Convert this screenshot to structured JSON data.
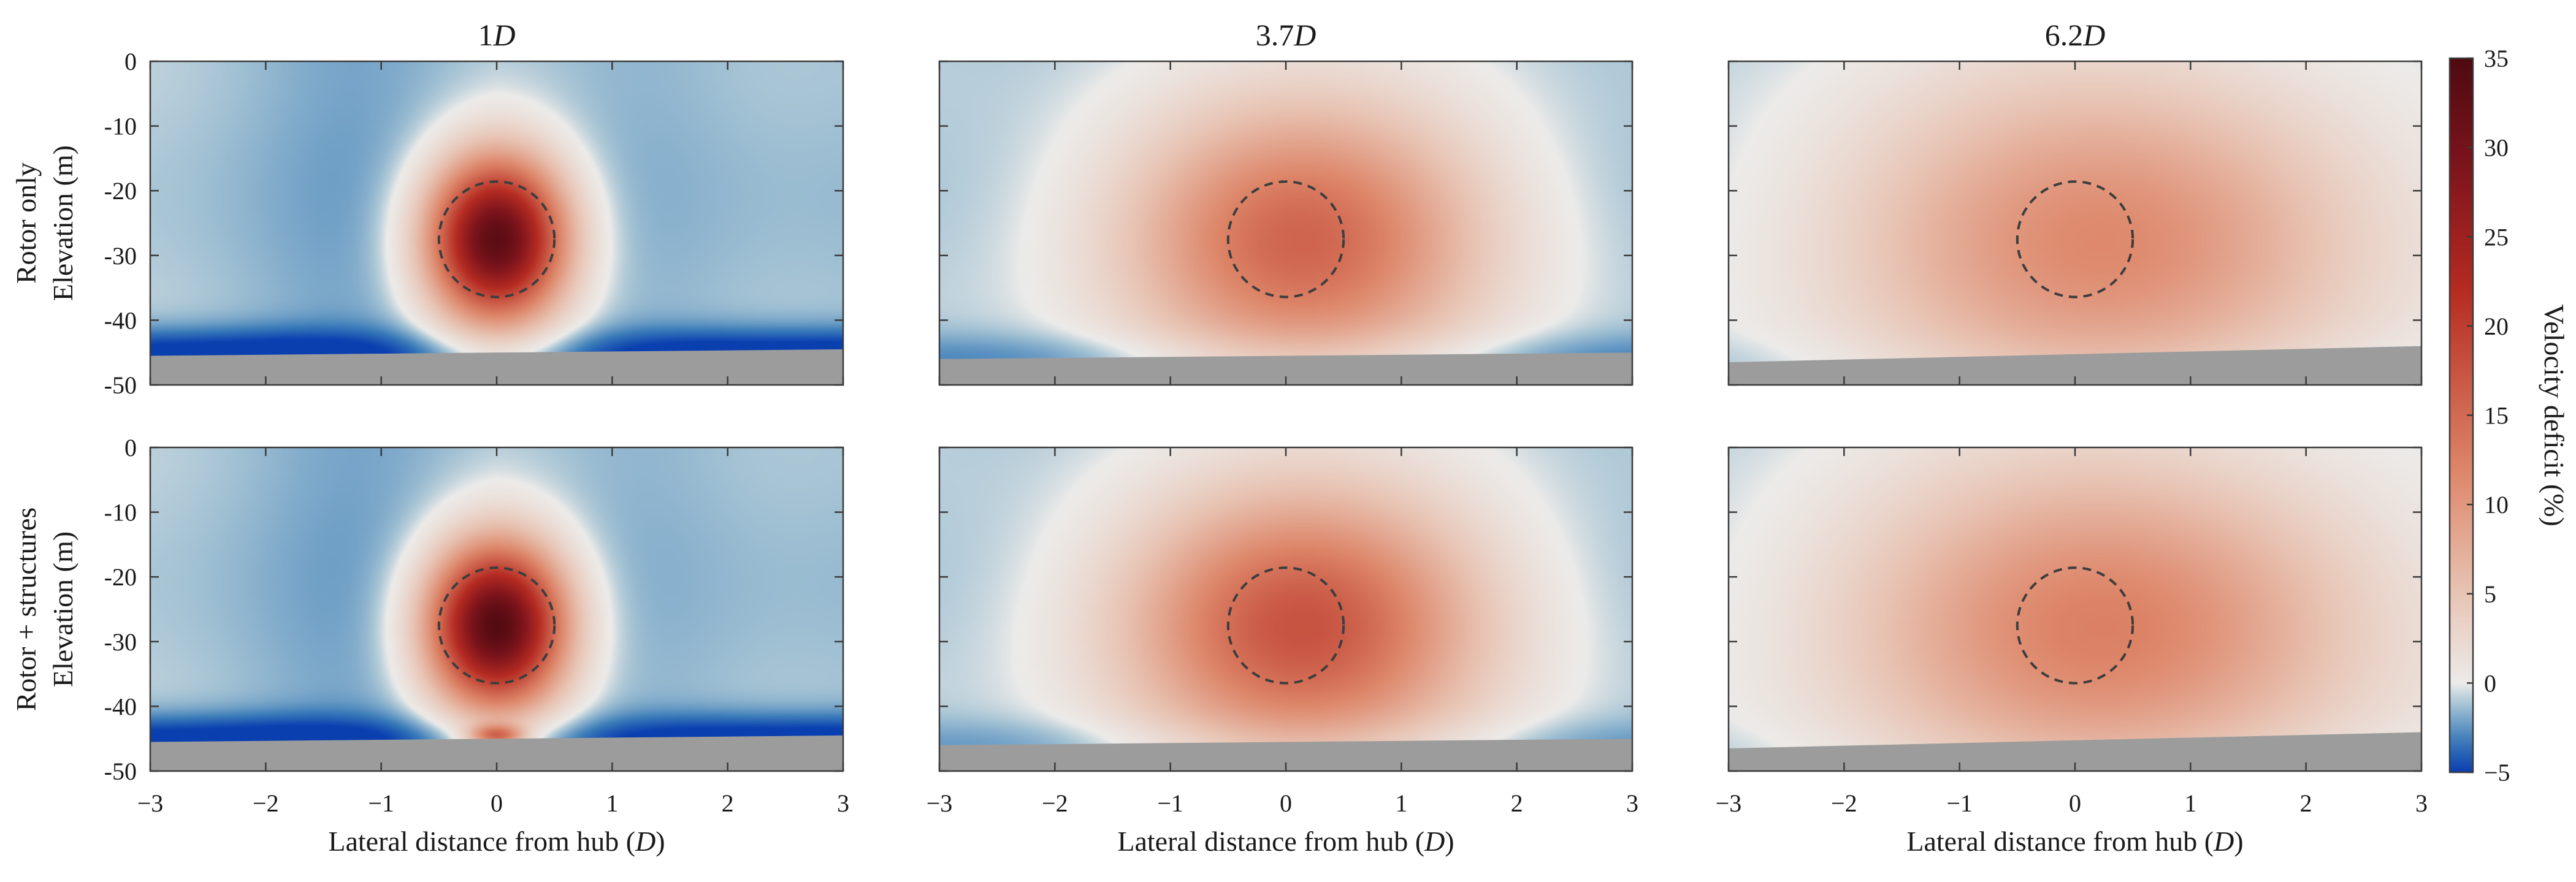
{
  "chart_data": {
    "type": "heatmap",
    "columns": [
      {
        "title_num": "1",
        "title_var": "D",
        "x_distance_D": 1
      },
      {
        "title_num": "3.7",
        "title_var": "D",
        "x_distance_D": 3.7
      },
      {
        "title_num": "6.2",
        "title_var": "D",
        "x_distance_D": 6.2
      }
    ],
    "rows": [
      {
        "label_line1": "Rotor only",
        "label_line2": "Elevation (m)"
      },
      {
        "label_line1": "Rotor + structures",
        "label_line2": "Elevation (m)"
      }
    ],
    "xlabel_text": "Lateral distance from hub (",
    "xlabel_var": "D",
    "xlabel_close": ")",
    "xlim": [
      -3,
      3
    ],
    "ylim": [
      -50,
      0
    ],
    "xticks": [
      -3,
      -2,
      -1,
      0,
      1,
      2,
      3
    ],
    "xtick_labels": [
      "−3",
      "−2",
      "−1",
      "0",
      "1",
      "2",
      "3"
    ],
    "yticks": [
      0,
      -10,
      -20,
      -30,
      -40,
      -50
    ],
    "ytick_labels": [
      "0",
      "-10",
      "-20",
      "-30",
      "-40",
      "-50"
    ],
    "rotor": {
      "center_x_D": 0,
      "center_z_m": -27.5,
      "diameter_D": 1
    },
    "colorbar": {
      "label": "Velocity deficit (%)",
      "range": [
        -5,
        35
      ],
      "ticks": [
        35,
        30,
        25,
        20,
        15,
        10,
        5,
        0,
        -5
      ],
      "tick_labels": [
        "35",
        "30",
        "25",
        "20",
        "15",
        "10",
        "5",
        "0",
        "−5"
      ],
      "colors": {
        "neg": "#0a3fb0",
        "zero": "#ecebe9",
        "ambient": "#cdd7dc",
        "mid": "#dd8568",
        "high": "#b52b22",
        "max": "#4e0a10"
      }
    },
    "panels": [
      {
        "row": 0,
        "col": 0,
        "wake_peak": 34,
        "core_sigma_x": 0.4,
        "core_sigma_z": 8.5,
        "wake_spread": 1.0,
        "negative_band": 5.0,
        "seabed_z_left": -45.5,
        "seabed_z_right": -44.5
      },
      {
        "row": 0,
        "col": 1,
        "wake_peak": 16,
        "core_sigma_x": 1.05,
        "core_sigma_z": 14,
        "wake_spread": 1.6,
        "negative_band": 2.0,
        "seabed_z_left": -46,
        "seabed_z_right": -45
      },
      {
        "row": 0,
        "col": 2,
        "wake_peak": 12,
        "core_sigma_x": 1.55,
        "core_sigma_z": 17,
        "wake_spread": 2.1,
        "negative_band": 0.6,
        "seabed_z_left": -46.5,
        "seabed_z_right": -44
      },
      {
        "row": 1,
        "col": 0,
        "wake_peak": 35,
        "core_sigma_x": 0.4,
        "core_sigma_z": 8.5,
        "wake_spread": 1.0,
        "negative_band": 5.0,
        "seabed_z_left": -45.5,
        "seabed_z_right": -44.5
      },
      {
        "row": 1,
        "col": 1,
        "wake_peak": 18,
        "core_sigma_x": 1.05,
        "core_sigma_z": 14,
        "wake_spread": 1.6,
        "negative_band": 1.5,
        "seabed_z_left": -46,
        "seabed_z_right": -45
      },
      {
        "row": 1,
        "col": 2,
        "wake_peak": 13,
        "core_sigma_x": 1.55,
        "core_sigma_z": 17,
        "wake_spread": 2.1,
        "negative_band": 0.4,
        "seabed_z_left": -46.5,
        "seabed_z_right": -44
      }
    ]
  }
}
